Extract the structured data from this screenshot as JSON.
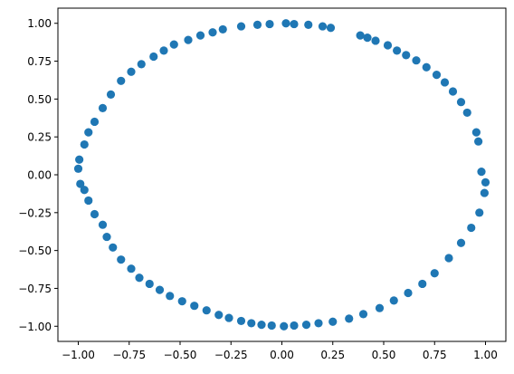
{
  "chart_data": {
    "type": "scatter",
    "title": "",
    "xlabel": "",
    "ylabel": "",
    "xlim": [
      -1.1,
      1.1
    ],
    "ylim": [
      -1.1,
      1.1
    ],
    "xticks": [
      -1.0,
      -0.75,
      -0.5,
      -0.25,
      0.0,
      0.25,
      0.5,
      0.75,
      1.0
    ],
    "yticks": [
      -1.0,
      -0.75,
      -0.5,
      -0.25,
      0.0,
      0.25,
      0.5,
      0.75,
      1.0
    ],
    "xtick_labels": [
      "−1.00",
      "−0.75",
      "−0.50",
      "−0.25",
      "0.00",
      "0.25",
      "0.50",
      "0.75",
      "1.00"
    ],
    "ytick_labels": [
      "−1.00",
      "−0.75",
      "−0.50",
      "−0.25",
      "0.00",
      "0.25",
      "0.50",
      "0.75",
      "1.00"
    ],
    "grid": false,
    "legend": "none",
    "marker_color": "#1f77b4",
    "series": [
      {
        "x": [
          0.02,
          0.06,
          0.13,
          0.2,
          0.24,
          0.385,
          0.42,
          0.46,
          0.52,
          0.565,
          0.61,
          0.66,
          0.71,
          0.76,
          0.8,
          0.84,
          0.88,
          0.91,
          0.955,
          0.965,
          0.98,
          1.0,
          0.995,
          0.97,
          0.93,
          0.88,
          0.82,
          0.75,
          0.69,
          0.62,
          0.55,
          0.48,
          0.4,
          0.33,
          0.25,
          0.18,
          0.12,
          0.06,
          0.01,
          -0.05,
          -0.1,
          -0.15,
          -0.2,
          -0.26,
          -0.31,
          -0.37,
          -0.43,
          -0.49,
          -0.55,
          -0.6,
          -0.65,
          -0.7,
          -0.74,
          -0.79,
          -0.83,
          -0.86,
          -0.88,
          -0.92,
          -0.95,
          -0.97,
          -0.99,
          -1.0,
          -0.995,
          -0.97,
          -0.95,
          -0.92,
          -0.88,
          -0.84,
          -0.79,
          -0.74,
          -0.69,
          -0.63,
          -0.58,
          -0.53,
          -0.46,
          -0.4,
          -0.34,
          -0.29,
          -0.2,
          -0.12,
          -0.06
        ],
        "y": [
          1.0,
          0.995,
          0.99,
          0.98,
          0.97,
          0.92,
          0.905,
          0.885,
          0.855,
          0.82,
          0.79,
          0.755,
          0.71,
          0.66,
          0.61,
          0.55,
          0.48,
          0.41,
          0.28,
          0.22,
          0.02,
          -0.05,
          -0.12,
          -0.25,
          -0.35,
          -0.45,
          -0.55,
          -0.65,
          -0.72,
          -0.78,
          -0.83,
          -0.88,
          -0.92,
          -0.95,
          -0.97,
          -0.98,
          -0.99,
          -0.995,
          -1.0,
          -0.995,
          -0.99,
          -0.98,
          -0.965,
          -0.945,
          -0.925,
          -0.895,
          -0.865,
          -0.835,
          -0.8,
          -0.76,
          -0.72,
          -0.68,
          -0.62,
          -0.56,
          -0.48,
          -0.41,
          -0.33,
          -0.26,
          -0.17,
          -0.1,
          -0.06,
          0.04,
          0.1,
          0.2,
          0.28,
          0.35,
          0.44,
          0.53,
          0.62,
          0.68,
          0.73,
          0.78,
          0.82,
          0.86,
          0.89,
          0.92,
          0.94,
          0.96,
          0.98,
          0.99,
          0.995
        ]
      }
    ]
  }
}
